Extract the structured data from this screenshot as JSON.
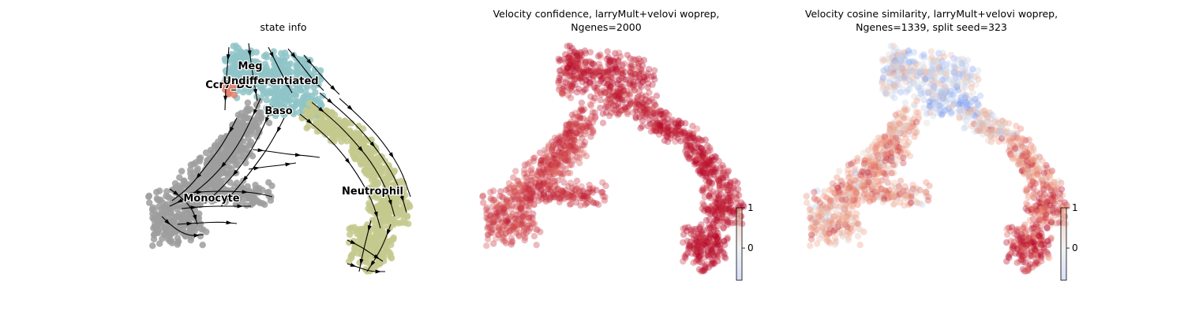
{
  "figure": {
    "panels": [
      {
        "title_lines": [
          "state info"
        ]
      },
      {
        "title_lines": [
          "Velocity confidence, larryMult+velovi woprep,",
          "Ngenes=2000"
        ]
      },
      {
        "title_lines": [
          "Velocity cosine similarity, larryMult+velovi woprep,",
          "Ngenes=1339, split seed=323"
        ]
      }
    ]
  },
  "chart_data": [
    {
      "type": "scatter",
      "subtype": "umap-embedding-with-velocity-streamlines",
      "title": "state info",
      "xlabel": "",
      "ylabel": "",
      "axes_visible": false,
      "grid": false,
      "clusters": [
        {
          "name": "Undifferentiated",
          "color": "#8fc4c8"
        },
        {
          "name": "Meg",
          "color": "#8fc4c8"
        },
        {
          "name": "Ccr7_DC",
          "color": "#e0806a"
        },
        {
          "name": "Baso",
          "color": "#8fc4c8"
        },
        {
          "name": "Monocyte",
          "color": "#9e9e9e"
        },
        {
          "name": "Neutrophil",
          "color": "#c4c98d"
        }
      ],
      "cluster_labels_shown": [
        "Meg",
        "Ccr7_DC",
        "Undifferentiated",
        "Baso",
        "Monocyte",
        "Neutrophil"
      ],
      "streamline_color": "#000000"
    },
    {
      "type": "scatter",
      "subtype": "umap-embedding-colored-by-value",
      "title": "Velocity confidence, larryMult+velovi woprep, Ngenes=2000",
      "xlabel": "",
      "ylabel": "",
      "axes_visible": false,
      "grid": false,
      "colormap": "coolwarm",
      "colorbar": {
        "ticks": [
          1,
          0
        ],
        "tick_labels": [
          "1",
          "0"
        ],
        "range": [
          -0.8,
          1
        ]
      },
      "value_range_observed": [
        0.5,
        1.0
      ],
      "point_alpha": 0.35
    },
    {
      "type": "scatter",
      "subtype": "umap-embedding-colored-by-value",
      "title": "Velocity cosine similarity, larryMult+velovi woprep, Ngenes=1339, split seed=323",
      "xlabel": "",
      "ylabel": "",
      "axes_visible": false,
      "grid": false,
      "colormap": "coolwarm",
      "colorbar": {
        "ticks": [
          1,
          0
        ],
        "tick_labels": [
          "1",
          "0"
        ],
        "range": [
          -0.8,
          1
        ]
      },
      "value_range_observed": [
        -0.6,
        1.0
      ],
      "point_alpha": 0.35
    }
  ]
}
